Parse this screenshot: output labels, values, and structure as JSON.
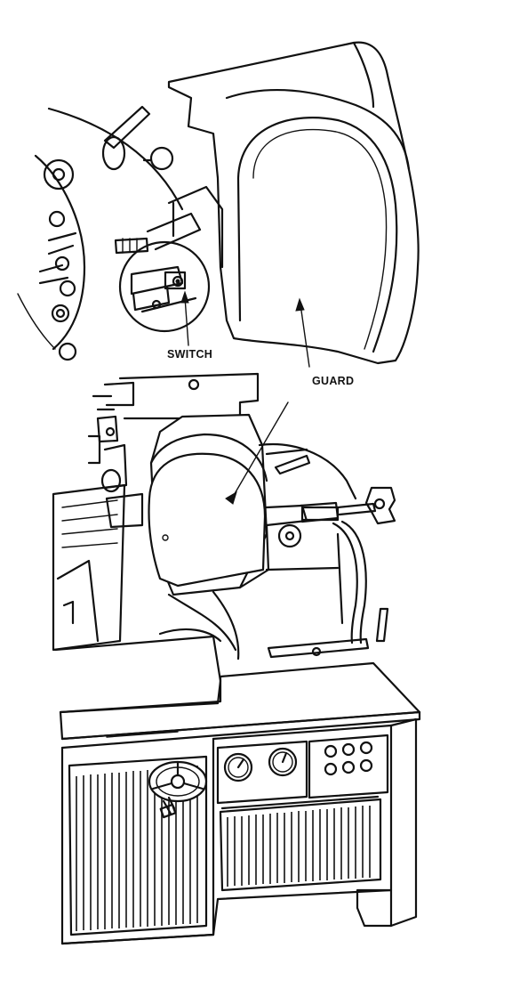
{
  "callouts": {
    "switch": "SWITCH",
    "guard": "GUARD"
  },
  "icons": {
    "switch_pointer": "arrow-icon",
    "guard_pointer": "arrow-icon"
  },
  "colors": {
    "ink": "#111111",
    "paper": "#ffffff"
  }
}
